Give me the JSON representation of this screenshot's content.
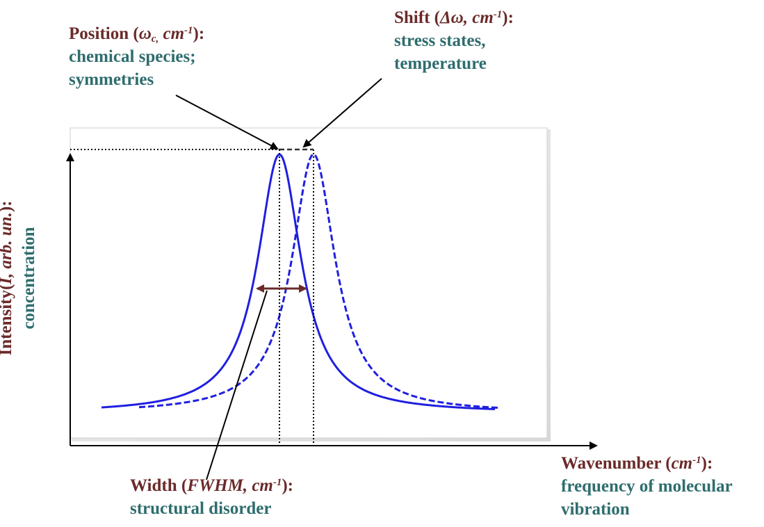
{
  "position": {
    "title": "Position",
    "symbol": "ω",
    "symbol_sub": "c,",
    "unit": "cm",
    "unit_sup": "-1",
    "line1": "chemical species;",
    "line2": "symmetries"
  },
  "shift": {
    "title": "Shift",
    "symbol": "Δω,",
    "unit": "cm",
    "unit_sup": "-1",
    "line1": "stress states,",
    "line2": "temperature"
  },
  "width": {
    "title": "Width",
    "symbol": "FWHM,",
    "unit": "cm",
    "unit_sup": "-1",
    "line1": "structural disorder"
  },
  "wavenumber": {
    "title": "Wavenumber",
    "unit": "cm",
    "unit_sup": "-1",
    "line1": "frequency of molecular",
    "line2": "vibration"
  },
  "intensity": {
    "title": "Intensity",
    "symbol": "I, arb. un.",
    "line1": "concentration"
  },
  "colors": {
    "curve": "#1f1fe0",
    "title_text": "#6b2a2a",
    "body_text": "#2f6d6e",
    "fwhm_arrow": "#6b2a2a"
  }
}
